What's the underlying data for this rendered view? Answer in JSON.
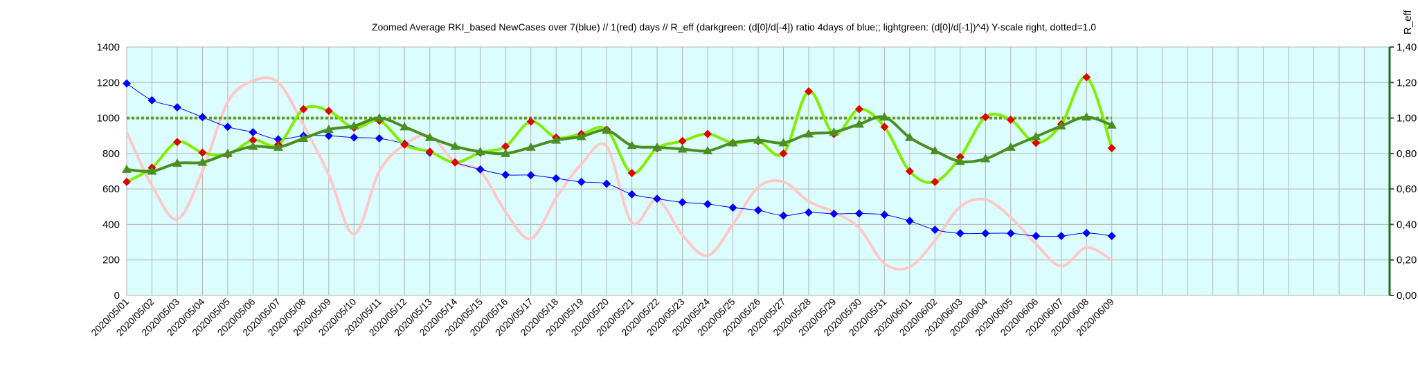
{
  "chart_data": {
    "type": "line",
    "title": "Zoomed Average RKI_based NewCases over 7(blue) // 1(red) days //  R_eff (darkgreen: (d[0]/d[-4]) ratio 4days of blue;; lightgreen: (d[0]/d[-1])^4) Y-scale right, dotted=1.0",
    "y2_label": "R_eff",
    "categories": [
      "2020/05/01",
      "2020/05/02",
      "2020/05/03",
      "2020/05/04",
      "2020/05/05",
      "2020/05/06",
      "2020/05/07",
      "2020/05/08",
      "2020/05/09",
      "2020/05/10",
      "2020/05/11",
      "2020/05/12",
      "2020/05/13",
      "2020/05/14",
      "2020/05/15",
      "2020/05/16",
      "2020/05/17",
      "2020/05/18",
      "2020/05/19",
      "2020/05/20",
      "2020/05/21",
      "2020/05/22",
      "2020/05/23",
      "2020/05/24",
      "2020/05/25",
      "2020/05/26",
      "2020/05/27",
      "2020/05/28",
      "2020/05/29",
      "2020/05/30",
      "2020/05/31",
      "2020/06/01",
      "2020/06/02",
      "2020/06/03",
      "2020/06/04",
      "2020/06/05",
      "2020/06/06",
      "2020/06/07",
      "2020/06/08",
      "2020/06/09",
      null,
      null,
      null,
      null,
      null,
      null,
      null,
      null,
      null,
      null,
      null
    ],
    "ylim": [
      0,
      1400
    ],
    "yticks": [
      0,
      200,
      400,
      600,
      800,
      1000,
      1200,
      1400
    ],
    "y2lim": [
      0,
      1.4
    ],
    "y2ticks": [
      {
        "value": 0,
        "label": "0,00"
      },
      {
        "value": 0.2,
        "label": "0,20"
      },
      {
        "value": 0.4,
        "label": "0,40"
      },
      {
        "value": 0.6,
        "label": "0,60"
      },
      {
        "value": 0.8,
        "label": "0,80"
      },
      {
        "value": 1,
        "label": "1,00"
      },
      {
        "value": 1.2,
        "label": "1,20"
      },
      {
        "value": 1.4,
        "label": "1,40"
      }
    ],
    "grid": true,
    "smooth": true,
    "background": "#dcfdfd",
    "reference_line": {
      "axis": "y2",
      "value": 1,
      "color": "#5c9e1e"
    },
    "series": [
      {
        "color": "#ffc8c8",
        "marker": "none",
        "width": 4,
        "values": [
          920,
          620,
          430,
          700,
          1090,
          1210,
          1200,
          960,
          680,
          345,
          700,
          850,
          900,
          750,
          700,
          470,
          320,
          550,
          740,
          840,
          410,
          540,
          340,
          225,
          400,
          610,
          640,
          530,
          470,
          380,
          180,
          160,
          310,
          500,
          540,
          440,
          290,
          165,
          270,
          200,
          null,
          null,
          null,
          null,
          null,
          null,
          null,
          null,
          null,
          null,
          null
        ]
      },
      {
        "color": "#0000ff",
        "marker": "diamond",
        "marker_color": "#0000ff",
        "width": 1,
        "values": [
          1195,
          1100,
          1060,
          1005,
          950,
          920,
          880,
          900,
          900,
          890,
          885,
          855,
          805,
          750,
          710,
          680,
          678,
          660,
          640,
          630,
          570,
          545,
          525,
          515,
          495,
          480,
          450,
          468,
          460,
          462,
          455,
          420,
          370,
          350,
          350,
          350,
          335,
          335,
          352,
          335,
          null,
          null,
          null,
          null,
          null,
          null,
          null,
          null,
          null,
          null,
          null
        ]
      },
      {
        "color": "#80ee00",
        "marker": "diamond",
        "marker_color": "#e00000",
        "width": 4,
        "axis": "y2",
        "values": [
          0.64,
          0.72,
          0.865,
          0.805,
          0.795,
          0.875,
          0.85,
          1.05,
          1.04,
          0.945,
          0.985,
          0.85,
          0.81,
          0.75,
          0.805,
          0.84,
          0.98,
          0.89,
          0.91,
          0.935,
          0.69,
          0.83,
          0.87,
          0.91,
          0.86,
          0.87,
          0.8,
          1.15,
          0.91,
          1.05,
          0.95,
          0.7,
          0.64,
          0.78,
          1.005,
          0.99,
          0.86,
          0.965,
          1.23,
          0.83,
          null,
          null,
          null,
          null,
          null,
          null,
          null,
          null,
          null,
          null,
          null
        ]
      },
      {
        "color": "#4a8f22",
        "marker": "triangle",
        "marker_color": "#4a8f22",
        "width": 4,
        "axis": "y2",
        "values": [
          0.71,
          0.7,
          0.745,
          0.75,
          0.8,
          0.84,
          0.835,
          0.885,
          0.935,
          0.955,
          1.0,
          0.95,
          0.89,
          0.84,
          0.81,
          0.8,
          0.835,
          0.875,
          0.895,
          0.93,
          0.845,
          0.835,
          0.825,
          0.815,
          0.86,
          0.875,
          0.86,
          0.91,
          0.92,
          0.965,
          1.005,
          0.89,
          0.815,
          0.755,
          0.77,
          0.835,
          0.895,
          0.955,
          1.005,
          0.96,
          null,
          null,
          null,
          null,
          null,
          null,
          null,
          null,
          null,
          null,
          null
        ]
      }
    ]
  }
}
